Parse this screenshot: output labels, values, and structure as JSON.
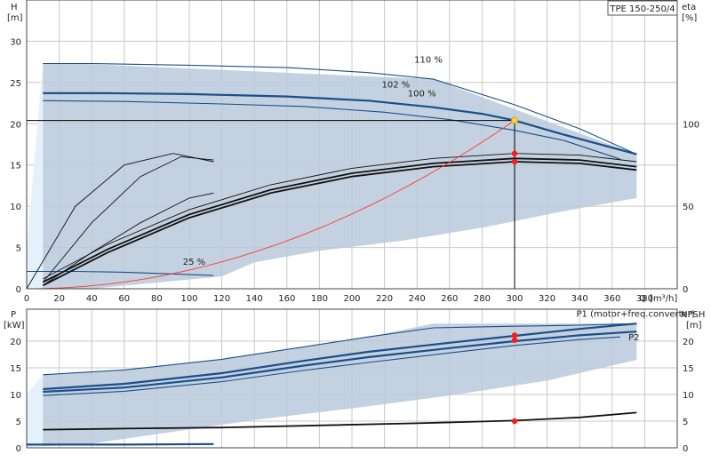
{
  "chart_data": {
    "type": "line",
    "title_box": "TPE 150-250/4",
    "x_axis": {
      "label": "Q",
      "unit": "[m³/h]",
      "range": [
        0,
        400
      ],
      "ticks": [
        0,
        20,
        40,
        60,
        80,
        100,
        120,
        140,
        160,
        180,
        200,
        220,
        240,
        260,
        280,
        300,
        320,
        340,
        360,
        380
      ],
      "grid": true
    },
    "top_panel": {
      "y_left": {
        "label": "H",
        "unit": "[m]",
        "range": [
          0,
          35
        ],
        "ticks": [
          0,
          5,
          10,
          15,
          20,
          25,
          30
        ]
      },
      "y_right": {
        "label": "eta",
        "unit": "[%]",
        "range": [
          0,
          175
        ],
        "ticks": [
          0,
          50,
          100
        ]
      },
      "speed_labels": [
        {
          "text": "110 %",
          "x": 247,
          "y": 27.4
        },
        {
          "text": "102 %",
          "x": 227,
          "y": 24.4
        },
        {
          "text": "100 %",
          "x": 243,
          "y": 23.3
        },
        {
          "text": "25 %",
          "x": 103,
          "y": 2.9
        }
      ],
      "operating_region": [
        [
          10,
          0
        ],
        [
          10,
          27.3
        ],
        [
          30,
          27.3
        ],
        [
          250,
          25.4
        ],
        [
          375,
          16.3
        ],
        [
          375,
          11.0
        ],
        [
          330,
          9.4
        ],
        [
          280,
          7.4
        ],
        [
          230,
          5.8
        ],
        [
          180,
          4.6
        ],
        [
          140,
          3.2
        ],
        [
          120,
          1.5
        ],
        [
          40,
          0
        ]
      ],
      "curves": [
        {
          "id": "h110",
          "weight": "thin",
          "points": [
            [
              10,
              27.3
            ],
            [
              40,
              27.3
            ],
            [
              100,
              27.1
            ],
            [
              160,
              26.8
            ],
            [
              210,
              26.2
            ],
            [
              250,
              25.4
            ],
            [
              300,
              22.3
            ],
            [
              340,
              19.4
            ],
            [
              375,
              16.3
            ]
          ]
        },
        {
          "id": "h102",
          "weight": "thick",
          "points": [
            [
              10,
              23.7
            ],
            [
              50,
              23.7
            ],
            [
              100,
              23.6
            ],
            [
              160,
              23.3
            ],
            [
              210,
              22.8
            ],
            [
              250,
              22.0
            ],
            [
              280,
              21.2
            ],
            [
              300,
              20.4
            ],
            [
              330,
              18.7
            ],
            [
              375,
              16.3
            ]
          ]
        },
        {
          "id": "h100",
          "weight": "thin",
          "points": [
            [
              10,
              22.8
            ],
            [
              60,
              22.7
            ],
            [
              120,
              22.4
            ],
            [
              170,
              22.1
            ],
            [
              220,
              21.4
            ],
            [
              260,
              20.5
            ],
            [
              300,
              19.2
            ],
            [
              330,
              18.0
            ],
            [
              365,
              15.7
            ]
          ]
        },
        {
          "id": "h25",
          "weight": "thin",
          "points": [
            [
              0,
              2.1
            ],
            [
              30,
              2.1
            ],
            [
              60,
              2.0
            ],
            [
              90,
              1.8
            ],
            [
              115,
              1.6
            ]
          ]
        }
      ],
      "eta_curves": [
        {
          "weight": "thick",
          "points": [
            [
              10,
              2
            ],
            [
              50,
              22
            ],
            [
              100,
              43
            ],
            [
              150,
              58
            ],
            [
              200,
              68
            ],
            [
              250,
              74
            ],
            [
              300,
              77
            ],
            [
              340,
              76
            ],
            [
              375,
              72
            ]
          ]
        },
        {
          "weight": "thick",
          "points": [
            [
              10,
              4
            ],
            [
              50,
              24
            ],
            [
              100,
              45
            ],
            [
              150,
              60
            ],
            [
              200,
              70
            ],
            [
              250,
              76
            ],
            [
              300,
              79
            ],
            [
              340,
              78
            ],
            [
              375,
              74
            ]
          ]
        },
        {
          "weight": "thin",
          "points": [
            [
              10,
              6
            ],
            [
              50,
              27
            ],
            [
              100,
              48
            ],
            [
              150,
              63
            ],
            [
              200,
              73
            ],
            [
              250,
              79
            ],
            [
              300,
              82
            ],
            [
              340,
              81
            ],
            [
              375,
              77
            ]
          ]
        },
        {
          "weight": "thin",
          "points": [
            [
              10,
              4
            ],
            [
              40,
              40
            ],
            [
              70,
              68
            ],
            [
              95,
              80
            ],
            [
              115,
              78
            ]
          ]
        },
        {
          "weight": "thin",
          "points": [
            [
              10,
              2
            ],
            [
              40,
              22
            ],
            [
              70,
              40
            ],
            [
              100,
              55
            ],
            [
              115,
              58
            ]
          ]
        },
        {
          "weight": "thin",
          "points": [
            [
              0,
              0
            ],
            [
              30,
              50
            ],
            [
              60,
              75
            ],
            [
              90,
              82
            ],
            [
              115,
              77
            ]
          ]
        }
      ],
      "system_curve": {
        "color": "#ff3a2e",
        "coefficient": 0.0002267
      },
      "duty_point": {
        "q": 300,
        "h": 20.4,
        "fill": "#ffd13a"
      },
      "eta_points": [
        {
          "q": 300,
          "eta": 77
        },
        {
          "q": 300,
          "eta": 82
        }
      ]
    },
    "bottom_panel": {
      "y_left": {
        "label": "P",
        "unit": "[kW]",
        "range": [
          0,
          26
        ],
        "ticks": [
          0,
          5,
          10,
          15,
          20
        ]
      },
      "y_right": {
        "label": "NPSH",
        "unit": "[m]",
        "range": [
          0,
          26
        ],
        "ticks": [
          0,
          5,
          10,
          15,
          20
        ]
      },
      "series_labels": [
        {
          "text": "P1 (motor+freq.converter)",
          "x": 338,
          "y": 24.6
        },
        {
          "text": "P2",
          "x": 370,
          "y": 20.2
        }
      ],
      "operating_region": [
        [
          10,
          13.7
        ],
        [
          60,
          14.6
        ],
        [
          120,
          16.6
        ],
        [
          170,
          18.9
        ],
        [
          210,
          20.8
        ],
        [
          250,
          23.3
        ],
        [
          375,
          23.3
        ],
        [
          375,
          16.5
        ],
        [
          320,
          12.6
        ],
        [
          260,
          9.8
        ],
        [
          200,
          7.4
        ],
        [
          140,
          5.2
        ],
        [
          90,
          3.0
        ],
        [
          40,
          0.8
        ],
        [
          10,
          0.3
        ]
      ],
      "curves": [
        {
          "id": "p110",
          "weight": "thin",
          "points": [
            [
              10,
              13.7
            ],
            [
              60,
              14.6
            ],
            [
              120,
              16.6
            ],
            [
              170,
              18.9
            ],
            [
              210,
              20.8
            ],
            [
              250,
              22.5
            ],
            [
              300,
              22.8
            ],
            [
              340,
              23.0
            ],
            [
              375,
              23.3
            ]
          ]
        },
        {
          "id": "p1",
          "weight": "thick",
          "points": [
            [
              10,
              11.0
            ],
            [
              60,
              12.0
            ],
            [
              120,
              14.0
            ],
            [
              170,
              16.3
            ],
            [
              210,
              18.0
            ],
            [
              260,
              19.7
            ],
            [
              300,
              21.0
            ],
            [
              340,
              22.3
            ],
            [
              375,
              23.3
            ]
          ]
        },
        {
          "id": "p2",
          "weight": "thick",
          "points": [
            [
              10,
              10.5
            ],
            [
              60,
              11.3
            ],
            [
              120,
              13.2
            ],
            [
              170,
              15.4
            ],
            [
              210,
              17.0
            ],
            [
              260,
              18.7
            ],
            [
              300,
              20.0
            ],
            [
              340,
              21.1
            ],
            [
              375,
              21.8
            ]
          ]
        },
        {
          "id": "p100",
          "weight": "thin",
          "points": [
            [
              10,
              9.8
            ],
            [
              60,
              10.6
            ],
            [
              120,
              12.4
            ],
            [
              170,
              14.5
            ],
            [
              210,
              16.0
            ],
            [
              260,
              17.8
            ],
            [
              300,
              19.2
            ],
            [
              340,
              20.3
            ],
            [
              365,
              20.8
            ]
          ]
        },
        {
          "id": "p25",
          "weight": "thick",
          "points": [
            [
              0,
              0.6
            ],
            [
              60,
              0.6
            ],
            [
              115,
              0.7
            ]
          ]
        }
      ],
      "npsh_curve": {
        "weight": "thick",
        "points": [
          [
            10,
            3.4
          ],
          [
            60,
            3.6
          ],
          [
            120,
            3.8
          ],
          [
            180,
            4.2
          ],
          [
            240,
            4.6
          ],
          [
            300,
            5.1
          ],
          [
            340,
            5.7
          ],
          [
            375,
            6.6
          ]
        ]
      },
      "power_points": [
        {
          "q": 300,
          "p": 20.2
        },
        {
          "q": 300,
          "p": 21.1
        }
      ],
      "npsh_point": {
        "q": 300,
        "npsh": 5.0
      }
    },
    "colors": {
      "region": "#b9c9da",
      "region_light": "#e4f1fb",
      "curve": "#1b4f8a",
      "grid": "#c8c8c8",
      "point": "#ff1a1a"
    }
  }
}
